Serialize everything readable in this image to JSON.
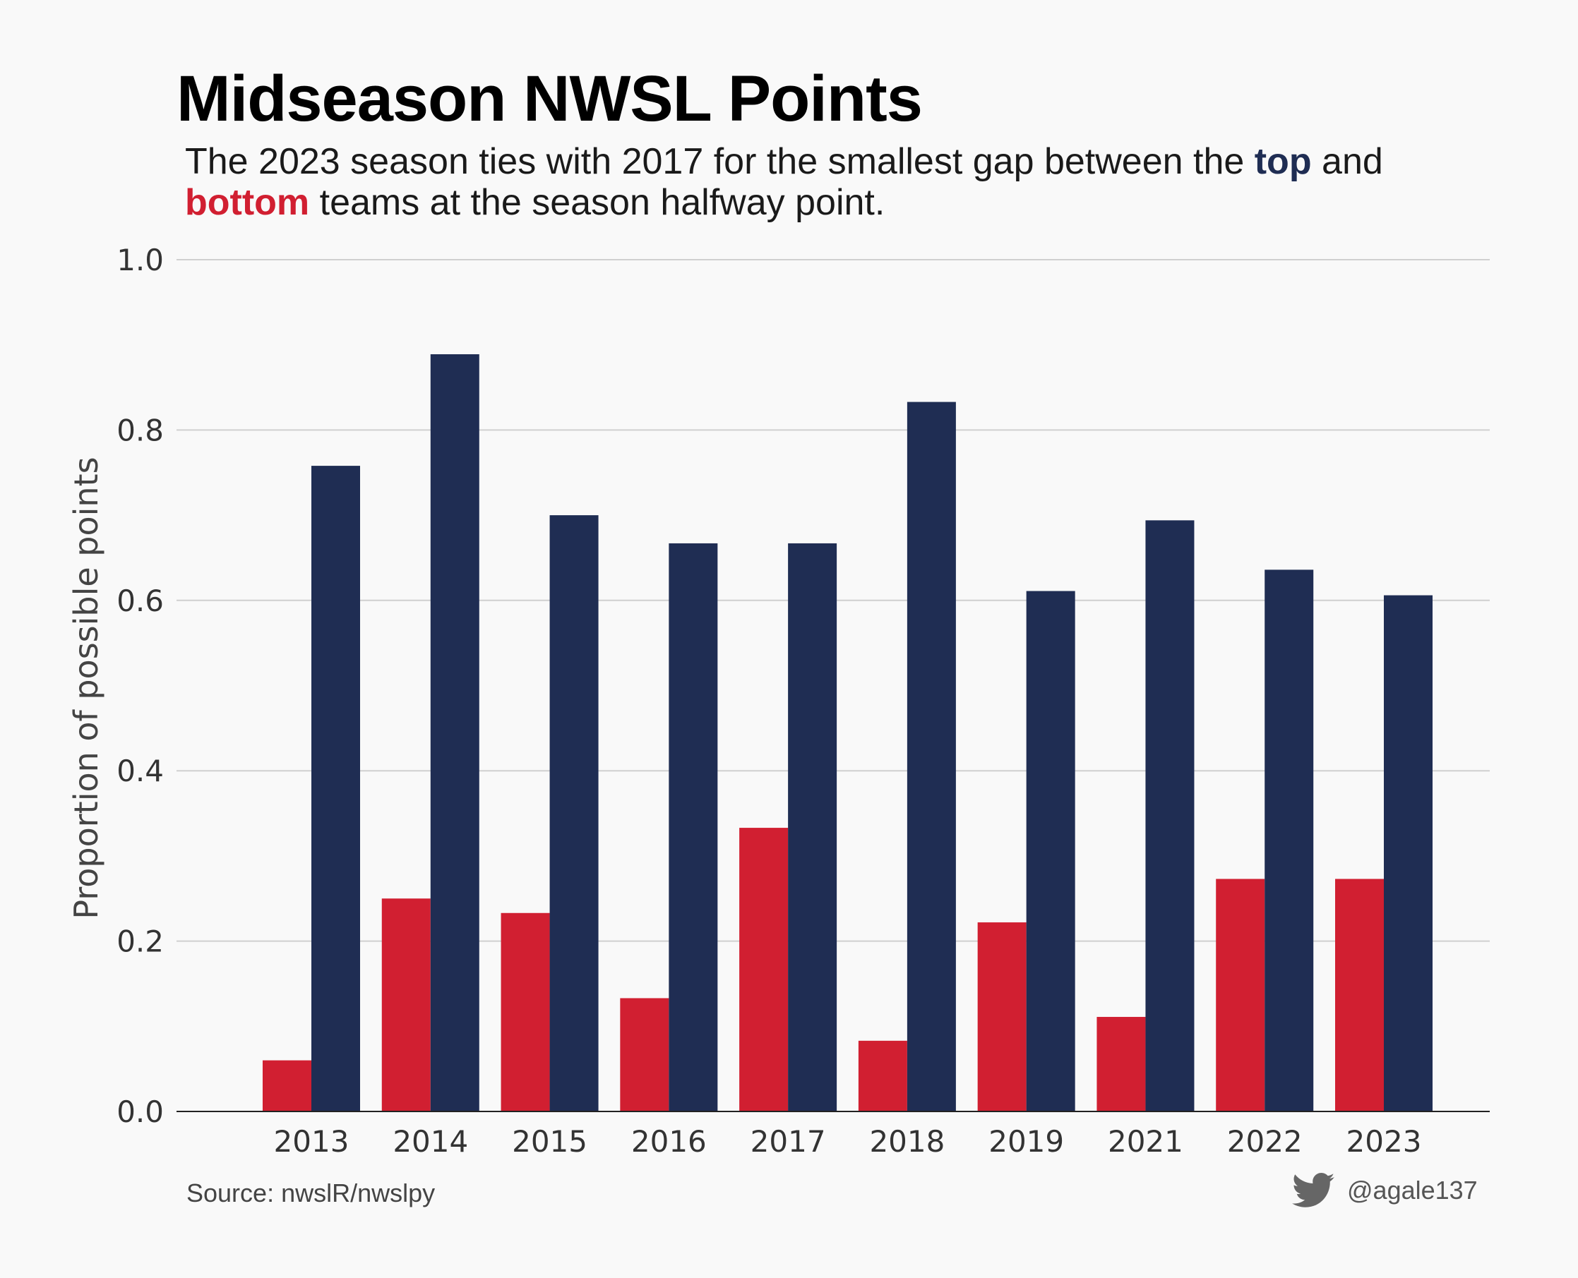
{
  "title": "Midseason NWSL Points",
  "subtitle": {
    "part1": "The 2023 season ties with 2017 for the smallest gap between the ",
    "top_word": "top",
    "part2": " and",
    "bottom_word": "bottom",
    "part3": " teams at the season halfway point."
  },
  "source": "Source: nwslR/nwslpy",
  "credit": {
    "icon": "twitter-bird-icon",
    "handle": "@agale137"
  },
  "colors": {
    "top": "#1f2d53",
    "bottom": "#d11f31",
    "grid": "#d0d0d0",
    "background": "#f9f9f9"
  },
  "chart_data": {
    "type": "bar",
    "ylabel": "Proportion of possible points",
    "ylim": [
      0,
      1.0
    ],
    "yticks": [
      "0.0",
      "0.2",
      "0.4",
      "0.6",
      "0.8",
      "1.0"
    ],
    "grid": "horizontal",
    "categories": [
      "2013",
      "2014",
      "2015",
      "2016",
      "2017",
      "2018",
      "2019",
      "2021",
      "2022",
      "2023"
    ],
    "series": [
      {
        "key": "bottom",
        "values": [
          0.06,
          0.25,
          0.233,
          0.133,
          0.333,
          0.083,
          0.222,
          0.111,
          0.273,
          0.273
        ]
      },
      {
        "key": "top",
        "values": [
          0.758,
          0.889,
          0.7,
          0.667,
          0.667,
          0.833,
          0.611,
          0.694,
          0.636,
          0.606
        ]
      }
    ]
  }
}
